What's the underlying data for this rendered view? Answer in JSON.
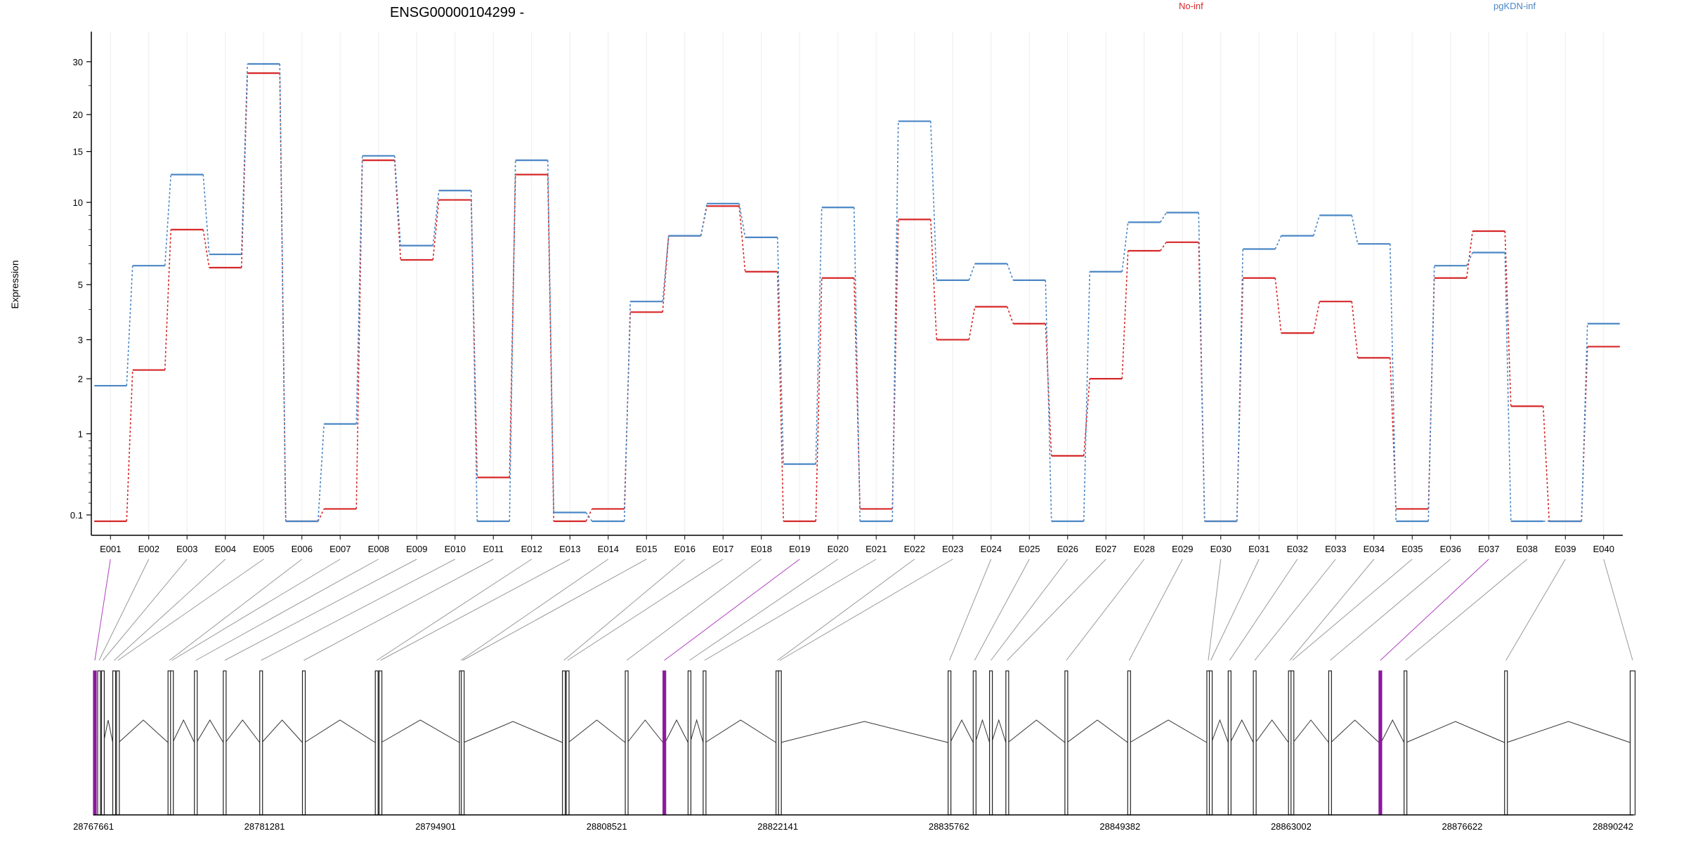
{
  "chart_data": {
    "type": "line",
    "title": "ENSG00000104299 -",
    "ylabel": "Expression",
    "y_scale": "log1p",
    "ylim": [
      0.05,
      33
    ],
    "grid": "vertical-light",
    "legend_placement": "top-right",
    "y_ticks": [
      {
        "value": 0.1,
        "label": "0.1"
      },
      {
        "value": 1,
        "label": "1"
      },
      {
        "value": 2,
        "label": "2"
      },
      {
        "value": 3,
        "label": "3"
      },
      {
        "value": 5,
        "label": "5"
      },
      {
        "value": 10,
        "label": "10"
      },
      {
        "value": 15,
        "label": "15"
      },
      {
        "value": 20,
        "label": "20"
      },
      {
        "value": 30,
        "label": "30"
      }
    ],
    "categories": [
      "E001",
      "E002",
      "E003",
      "E004",
      "E005",
      "E006",
      "E007",
      "E008",
      "E009",
      "E010",
      "E011",
      "E012",
      "E013",
      "E014",
      "E015",
      "E016",
      "E017",
      "E018",
      "E019",
      "E020",
      "E021",
      "E022",
      "E023",
      "E024",
      "E025",
      "E026",
      "E027",
      "E028",
      "E029",
      "E030",
      "E031",
      "E032",
      "E033",
      "E034",
      "E035",
      "E036",
      "E037",
      "E038",
      "E039",
      "E040"
    ],
    "series": [
      {
        "name": "No-inf",
        "color": "#d62728",
        "values": [
          0.05,
          2.2,
          8.0,
          5.8,
          27.5,
          0.05,
          0.15,
          14.0,
          6.2,
          10.2,
          0.45,
          12.5,
          0.05,
          0.15,
          3.9,
          7.6,
          9.7,
          5.6,
          0.05,
          5.3,
          0.15,
          8.7,
          3.0,
          4.1,
          3.5,
          0.7,
          2.0,
          6.7,
          7.2,
          0.05,
          5.3,
          3.2,
          4.3,
          2.5,
          0.15,
          5.3,
          7.9,
          1.45,
          0.05,
          2.8
        ]
      },
      {
        "name": "pgKDN-inf",
        "color": "#4a86c5",
        "values": [
          1.85,
          5.9,
          12.5,
          6.5,
          29.5,
          0.05,
          1.15,
          14.5,
          7.0,
          11.0,
          0.05,
          14.0,
          0.12,
          0.05,
          4.3,
          7.6,
          9.9,
          7.5,
          0.6,
          9.6,
          0.05,
          19.0,
          5.2,
          6.0,
          5.2,
          0.05,
          5.6,
          8.5,
          9.2,
          0.05,
          6.8,
          7.6,
          9.0,
          7.1,
          0.05,
          5.9,
          6.6,
          0.05,
          0.05,
          3.5
        ]
      }
    ],
    "exon_starts": [
      28767661,
      28768000,
      28768300,
      28769200,
      28769500,
      28773600,
      28773800,
      28775700,
      28778000,
      28780900,
      28784300,
      28790100,
      28790400,
      28796800,
      28796950,
      28805000,
      28805300,
      28810000,
      28813000,
      28815000,
      28816200,
      28822000,
      28822200,
      28835700,
      28837700,
      28839000,
      28840300,
      28845000,
      28850000,
      28856300,
      28856500,
      28858000,
      28860000,
      28862800,
      28863000,
      28866000,
      28870000,
      28872000,
      28880000,
      28890000
    ],
    "highlighted_exons": [
      "E001",
      "E019",
      "E037"
    ],
    "coordinate_ticks": [
      "28767661",
      "28781281",
      "28794901",
      "28808521",
      "28822141",
      "28835762",
      "28849382",
      "28863002",
      "28876622",
      "28890242"
    ]
  }
}
